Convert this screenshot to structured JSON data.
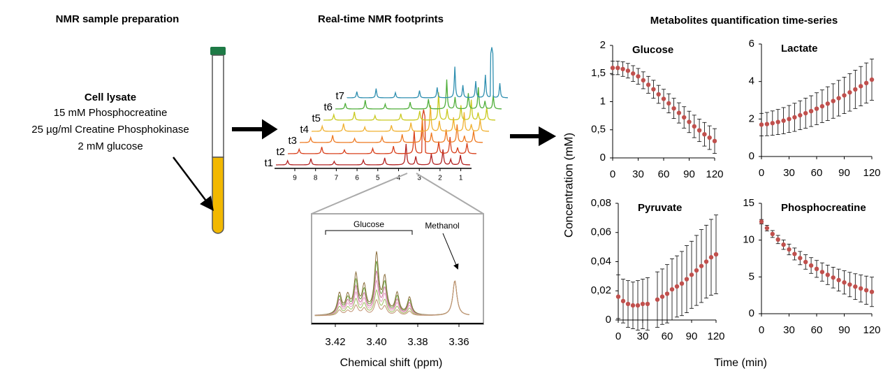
{
  "preparation": {
    "title": "NMR sample preparation",
    "heading": "Cell lysate",
    "lines": [
      "15 mM Phosphocreatine",
      "25 µg/ml Creatine Phosphokinase",
      "2 mM glucose"
    ]
  },
  "footprints": {
    "title": "Real-time NMR footprints",
    "traces": [
      "t1",
      "t2",
      "t3",
      "t4",
      "t5",
      "t6",
      "t7"
    ],
    "axis_ticks": [
      9,
      8,
      7,
      6,
      5,
      4,
      3,
      2,
      1
    ],
    "inset": {
      "bracket_label": "Glucose",
      "arrow_label": "Methanol",
      "xticks": [
        {
          "value": 3.42,
          "label": "3.42"
        },
        {
          "value": 3.4,
          "label": "3.40"
        },
        {
          "value": 3.38,
          "label": "3.38"
        },
        {
          "value": 3.36,
          "label": "3.36"
        }
      ],
      "xlabel": "Chemical shift (ppm)"
    }
  },
  "series_panel": {
    "title": "Metabolites quantification time-series",
    "ylabel": "Concentration (mM)",
    "xlabel": "Time (min)"
  },
  "chart_data": [
    {
      "type": "scatter",
      "title": "Glucose",
      "color": "#c0504d",
      "x": [
        0,
        6,
        12,
        18,
        24,
        30,
        36,
        42,
        48,
        54,
        60,
        66,
        72,
        78,
        84,
        90,
        96,
        102,
        108,
        114,
        120
      ],
      "values": [
        1.6,
        1.6,
        1.58,
        1.55,
        1.5,
        1.45,
        1.38,
        1.3,
        1.22,
        1.13,
        1.05,
        0.97,
        0.88,
        0.8,
        0.72,
        0.64,
        0.56,
        0.49,
        0.42,
        0.36,
        0.3
      ],
      "errors": [
        0.12,
        0.12,
        0.13,
        0.13,
        0.14,
        0.14,
        0.15,
        0.15,
        0.16,
        0.16,
        0.17,
        0.17,
        0.18,
        0.18,
        0.19,
        0.19,
        0.2,
        0.2,
        0.21,
        0.21,
        0.22
      ],
      "xlim": [
        0,
        120
      ],
      "xticks": [
        0,
        30,
        60,
        90,
        120
      ],
      "ylim": [
        0,
        2
      ],
      "yticks": [
        0,
        {
          "value": 0.5,
          "label": "0,5"
        },
        1,
        {
          "value": 1.5,
          "label": "1,5"
        },
        2
      ]
    },
    {
      "type": "scatter",
      "title": "Lactate",
      "color": "#c0504d",
      "x": [
        0,
        6,
        12,
        18,
        24,
        30,
        36,
        42,
        48,
        54,
        60,
        66,
        72,
        78,
        84,
        90,
        96,
        102,
        108,
        114,
        120
      ],
      "values": [
        1.7,
        1.73,
        1.78,
        1.84,
        1.91,
        2.0,
        2.09,
        2.2,
        2.31,
        2.42,
        2.55,
        2.68,
        2.82,
        2.96,
        3.11,
        3.26,
        3.42,
        3.58,
        3.75,
        3.92,
        4.1
      ],
      "errors": [
        0.6,
        0.62,
        0.65,
        0.67,
        0.7,
        0.72,
        0.75,
        0.77,
        0.8,
        0.82,
        0.85,
        0.87,
        0.9,
        0.92,
        0.95,
        0.97,
        1.0,
        1.02,
        1.05,
        1.07,
        1.1
      ],
      "xlim": [
        0,
        120
      ],
      "xticks": [
        0,
        30,
        60,
        90,
        120
      ],
      "ylim": [
        0,
        6
      ],
      "yticks": [
        0,
        2,
        4,
        6
      ]
    },
    {
      "type": "scatter",
      "title": "Pyruvate",
      "color": "#c0504d",
      "x": [
        0,
        6,
        12,
        18,
        24,
        30,
        36,
        42,
        48,
        54,
        60,
        66,
        72,
        78,
        84,
        90,
        96,
        102,
        108,
        114,
        120
      ],
      "values": [
        0.016,
        0.013,
        0.011,
        0.01,
        0.01,
        0.011,
        0.011,
        null,
        0.014,
        0.016,
        0.018,
        0.021,
        0.023,
        0.025,
        0.028,
        0.031,
        0.034,
        0.037,
        0.04,
        0.043,
        0.045
      ],
      "errors": [
        0.015,
        0.015,
        0.016,
        0.016,
        0.017,
        0.017,
        0.018,
        null,
        0.019,
        0.019,
        0.02,
        0.021,
        0.021,
        0.022,
        0.023,
        0.023,
        0.024,
        0.025,
        0.025,
        0.026,
        0.027
      ],
      "xlim": [
        0,
        120
      ],
      "xticks": [
        0,
        30,
        60,
        90,
        120
      ],
      "ylim": [
        0,
        0.08
      ],
      "yticks": [
        0,
        {
          "value": 0.02,
          "label": "0,02"
        },
        {
          "value": 0.04,
          "label": "0,04"
        },
        {
          "value": 0.06,
          "label": "0,06"
        },
        {
          "value": 0.08,
          "label": "0,08"
        }
      ]
    },
    {
      "type": "scatter",
      "title": "Phosphocreatine",
      "color": "#c0504d",
      "x": [
        0,
        6,
        12,
        18,
        24,
        30,
        36,
        42,
        48,
        54,
        60,
        66,
        72,
        78,
        84,
        90,
        96,
        102,
        108,
        114,
        120
      ],
      "values": [
        12.5,
        11.63,
        10.83,
        10.08,
        9.38,
        8.73,
        8.12,
        7.56,
        7.03,
        6.55,
        6.09,
        5.67,
        5.28,
        4.91,
        4.57,
        4.25,
        3.96,
        3.68,
        3.43,
        3.19,
        2.97
      ],
      "errors": [
        0.3,
        0.39,
        0.47,
        0.56,
        0.64,
        0.73,
        0.81,
        0.9,
        0.98,
        1.07,
        1.15,
        1.24,
        1.32,
        1.41,
        1.49,
        1.58,
        1.66,
        1.75,
        1.83,
        1.92,
        2.0
      ],
      "xlim": [
        0,
        120
      ],
      "xticks": [
        0,
        30,
        60,
        90,
        120
      ],
      "ylim": [
        0,
        15
      ],
      "yticks": [
        0,
        5,
        10,
        15
      ]
    }
  ]
}
